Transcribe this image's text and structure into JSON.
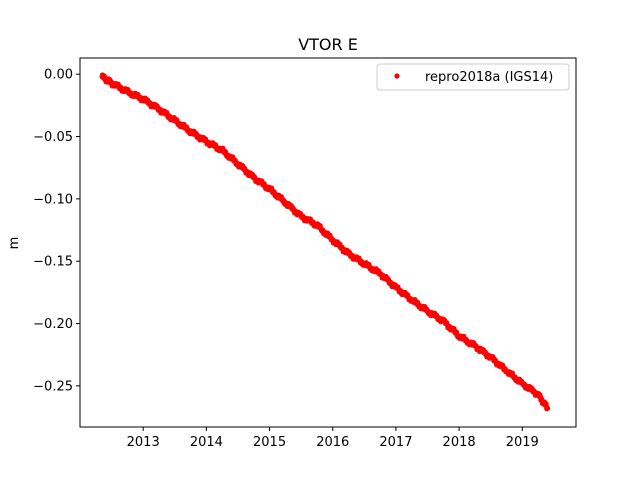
{
  "chart_data": {
    "type": "scatter",
    "title": "VTOR E",
    "xlabel": "",
    "ylabel": "m",
    "xlim": [
      2012.0,
      2019.85
    ],
    "ylim": [
      -0.283,
      0.013
    ],
    "xticks": [
      2013,
      2014,
      2015,
      2016,
      2017,
      2018,
      2019
    ],
    "xtick_labels": [
      "2013",
      "2014",
      "2015",
      "2016",
      "2017",
      "2018",
      "2019"
    ],
    "yticks": [
      0.0,
      -0.05,
      -0.1,
      -0.15,
      -0.2,
      -0.25
    ],
    "ytick_labels": [
      "0.00",
      "−0.05",
      "−0.10",
      "−0.15",
      "−0.20",
      "−0.25"
    ],
    "grid": false,
    "legend_position": "top-right",
    "series": [
      {
        "name": "repro2018a (IGS14)",
        "color": "#ff0000",
        "marker": "dot",
        "x": [
          2012.35,
          2012.5,
          2012.75,
          2013.0,
          2013.25,
          2013.5,
          2013.75,
          2014.0,
          2014.25,
          2014.5,
          2014.75,
          2015.0,
          2015.25,
          2015.5,
          2015.75,
          2016.0,
          2016.25,
          2016.5,
          2016.75,
          2017.0,
          2017.25,
          2017.5,
          2017.75,
          2018.0,
          2018.25,
          2018.5,
          2018.75,
          2019.0,
          2019.25,
          2019.4
        ],
        "y": [
          -0.002,
          -0.007,
          -0.014,
          -0.02,
          -0.028,
          -0.037,
          -0.046,
          -0.054,
          -0.061,
          -0.072,
          -0.083,
          -0.092,
          -0.103,
          -0.114,
          -0.121,
          -0.133,
          -0.144,
          -0.152,
          -0.16,
          -0.171,
          -0.181,
          -0.19,
          -0.198,
          -0.21,
          -0.218,
          -0.227,
          -0.238,
          -0.248,
          -0.257,
          -0.268
        ]
      }
    ]
  }
}
